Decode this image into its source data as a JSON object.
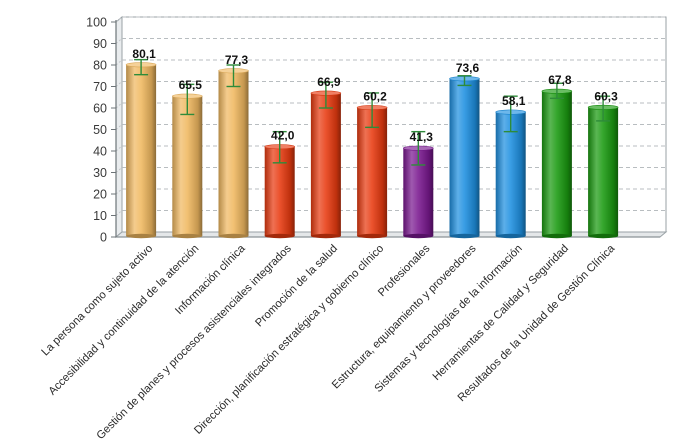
{
  "chart_data": {
    "type": "bar",
    "title": "",
    "xlabel": "",
    "ylabel": "",
    "ylim": [
      0,
      100
    ],
    "yticks": [
      "0",
      "10",
      "20",
      "30",
      "40",
      "50",
      "60",
      "70",
      "80",
      "90",
      "100"
    ],
    "grid": true,
    "categories": [
      "La persona como sujeto activo",
      "Accesibilidad y continuidad de la atención",
      "Información clínica",
      "Gestión de planes y procesos asistenciales integrados",
      "Promoción de la salud",
      "Dirección, planificación estratégica y gobierno clínico",
      "Profesionales",
      "Estructura, equipamiento y proveedores",
      "Sistemas y tecnologías de la información",
      "Herramientas de Calidad y Seguridad",
      "Resultados de la Unidad de Gestión Clínica"
    ],
    "values": [
      80.1,
      65.5,
      77.3,
      42.0,
      66.9,
      60.2,
      41.3,
      73.6,
      58.1,
      67.8,
      60.3
    ],
    "value_labels": [
      "80,1",
      "65,5",
      "77,3",
      "42,0",
      "66,9",
      "60,2",
      "41,3",
      "73,6",
      "58,1",
      "67,8",
      "60,3"
    ],
    "error_low": [
      75.5,
      57.0,
      70.0,
      34.5,
      60.0,
      51.0,
      33.5,
      70.5,
      49.0,
      64.5,
      54.0
    ],
    "error_high": [
      82.5,
      71.0,
      80.0,
      49.0,
      72.0,
      67.0,
      49.0,
      75.0,
      65.5,
      71.5,
      65.5
    ],
    "bar_colors": [
      "#F0B860",
      "#F0B860",
      "#F0B860",
      "#E83A10",
      "#E83A10",
      "#E83A10",
      "#7A1890",
      "#1E90E0",
      "#1E90E0",
      "#1A9A10",
      "#1A9A10"
    ],
    "error_color": "#2E8B3A"
  }
}
